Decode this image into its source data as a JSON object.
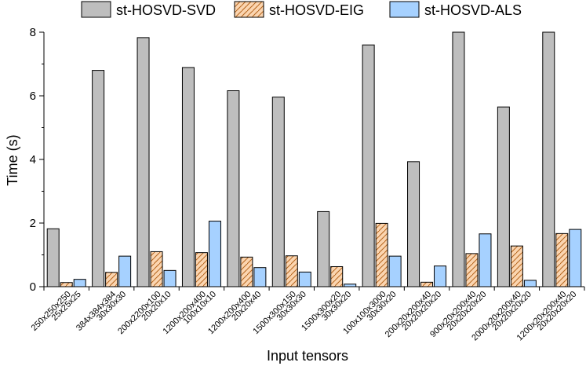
{
  "chart_data": {
    "type": "bar",
    "xlabel": "Input tensors",
    "ylabel": "Time (s)",
    "ylim": [
      0,
      8
    ],
    "yticks": [
      "0",
      "2",
      "4",
      "6",
      "8"
    ],
    "legend_position": "top",
    "categories": [
      [
        "250x250x250",
        "25x25x25"
      ],
      [
        "384x384x384",
        "30x30x30"
      ],
      [
        "200x2200x100",
        "20x20x10"
      ],
      [
        "1200x200x400",
        "100x10x10"
      ],
      [
        "1200x200x400",
        "20x20x40"
      ],
      [
        "1500x300x150",
        "30x30x30"
      ],
      [
        "1500x300x20",
        "30x30x20"
      ],
      [
        "100x100x3000",
        "30x30x20"
      ],
      [
        "200x20x200x40",
        "20x20x20x20"
      ],
      [
        "900x20x200x40",
        "20x20x20x20"
      ],
      [
        "2000x20x200x40",
        "20x20x20x20"
      ],
      [
        "1200x20x200x40",
        "20x20x20x20"
      ]
    ],
    "series": [
      {
        "name": "st-HOSVD-SVD",
        "color": "#bebebe",
        "pattern": "solid",
        "values": [
          1.82,
          6.8,
          7.83,
          6.89,
          6.16,
          5.96,
          2.36,
          7.6,
          3.93,
          8.0,
          5.65,
          8.0
        ]
      },
      {
        "name": "st-HOSVD-EIG",
        "color": "#fbd5b0",
        "pattern": "hatch",
        "values": [
          0.13,
          0.45,
          1.1,
          1.07,
          0.93,
          0.97,
          0.63,
          1.99,
          0.14,
          1.04,
          1.28,
          1.67
        ]
      },
      {
        "name": "st-HOSVD-ALS",
        "color": "#a6d1ff",
        "pattern": "solid",
        "values": [
          0.23,
          0.96,
          0.51,
          2.06,
          0.6,
          0.46,
          0.08,
          0.96,
          0.65,
          1.66,
          0.2,
          1.8
        ]
      }
    ]
  }
}
